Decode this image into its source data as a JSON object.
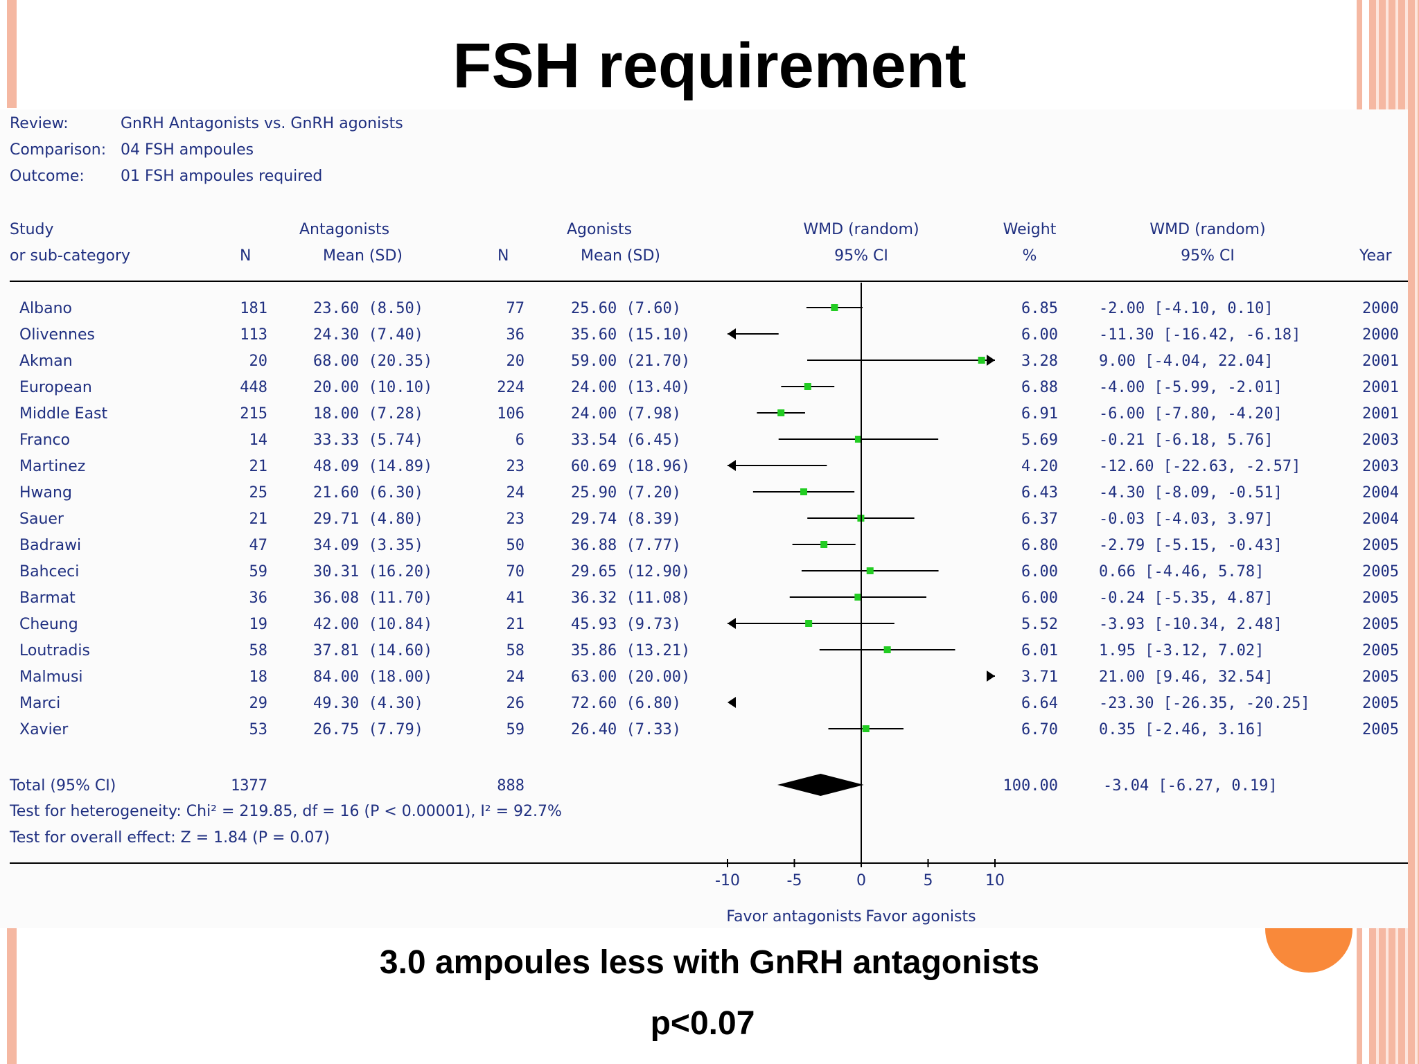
{
  "slide": {
    "title": "FSH requirement",
    "conclusion": "3.0 ampoules less with GnRH antagonists",
    "p_value": "p<0.07"
  },
  "colors": {
    "text": "#1f2f80",
    "marker": "#22cc22",
    "accent_orange": "#f9893a",
    "stripe": "#f5b8a2"
  },
  "chart_data": {
    "type": "forest",
    "meta": [
      {
        "label": "Review:",
        "value": "GnRH Antagonists vs. GnRH agonists"
      },
      {
        "label": "Comparison:",
        "value": "04 FSH ampoules"
      },
      {
        "label": "Outcome:",
        "value": "01 FSH ampoules required"
      }
    ],
    "headers": {
      "study": [
        "Study",
        "or sub-category"
      ],
      "antagonists": "Antagonists",
      "agonists": "Agonists",
      "n": "N",
      "mean_sd": "Mean (SD)",
      "wmd_plot": [
        "WMD (random)",
        "95% CI"
      ],
      "weight": [
        "Weight",
        "%"
      ],
      "wmd_text": [
        "WMD (random)",
        "95% CI"
      ],
      "year": "Year"
    },
    "studies": [
      {
        "study": "Albano",
        "n1": "181",
        "m1": "23.60 (8.50)",
        "n2": "77",
        "m2": "25.60 (7.60)",
        "wmd": -2.0,
        "lo": -4.1,
        "hi": 0.1,
        "weight": "6.85",
        "ci": "-2.00 [-4.10, 0.10]",
        "year": "2000"
      },
      {
        "study": "Olivennes",
        "n1": "113",
        "m1": "24.30 (7.40)",
        "n2": "36",
        "m2": "35.60 (15.10)",
        "wmd": -11.3,
        "lo": -16.42,
        "hi": -6.18,
        "weight": "6.00",
        "ci": "-11.30 [-16.42, -6.18]",
        "year": "2000"
      },
      {
        "study": "Akman",
        "n1": "20",
        "m1": "68.00 (20.35)",
        "n2": "20",
        "m2": "59.00 (21.70)",
        "wmd": 9.0,
        "lo": -4.04,
        "hi": 22.04,
        "weight": "3.28",
        "ci": "9.00 [-4.04, 22.04]",
        "year": "2001"
      },
      {
        "study": "European",
        "n1": "448",
        "m1": "20.00 (10.10)",
        "n2": "224",
        "m2": "24.00 (13.40)",
        "wmd": -4.0,
        "lo": -5.99,
        "hi": -2.01,
        "weight": "6.88",
        "ci": "-4.00 [-5.99, -2.01]",
        "year": "2001"
      },
      {
        "study": "Middle East",
        "n1": "215",
        "m1": "18.00 (7.28)",
        "n2": "106",
        "m2": "24.00 (7.98)",
        "wmd": -6.0,
        "lo": -7.8,
        "hi": -4.2,
        "weight": "6.91",
        "ci": "-6.00 [-7.80, -4.20]",
        "year": "2001"
      },
      {
        "study": "Franco",
        "n1": "14",
        "m1": "33.33 (5.74)",
        "n2": "6",
        "m2": "33.54 (6.45)",
        "wmd": -0.21,
        "lo": -6.18,
        "hi": 5.76,
        "weight": "5.69",
        "ci": "-0.21 [-6.18, 5.76]",
        "year": "2003"
      },
      {
        "study": "Martinez",
        "n1": "21",
        "m1": "48.09 (14.89)",
        "n2": "23",
        "m2": "60.69 (18.96)",
        "wmd": -12.6,
        "lo": -22.63,
        "hi": -2.57,
        "weight": "4.20",
        "ci": "-12.60 [-22.63, -2.57]",
        "year": "2003"
      },
      {
        "study": "Hwang",
        "n1": "25",
        "m1": "21.60 (6.30)",
        "n2": "24",
        "m2": "25.90 (7.20)",
        "wmd": -4.3,
        "lo": -8.09,
        "hi": -0.51,
        "weight": "6.43",
        "ci": "-4.30 [-8.09, -0.51]",
        "year": "2004"
      },
      {
        "study": "Sauer",
        "n1": "21",
        "m1": "29.71 (4.80)",
        "n2": "23",
        "m2": "29.74 (8.39)",
        "wmd": -0.03,
        "lo": -4.03,
        "hi": 3.97,
        "weight": "6.37",
        "ci": "-0.03 [-4.03, 3.97]",
        "year": "2004"
      },
      {
        "study": "Badrawi",
        "n1": "47",
        "m1": "34.09 (3.35)",
        "n2": "50",
        "m2": "36.88 (7.77)",
        "wmd": -2.79,
        "lo": -5.15,
        "hi": -0.43,
        "weight": "6.80",
        "ci": "-2.79 [-5.15, -0.43]",
        "year": "2005"
      },
      {
        "study": "Bahceci",
        "n1": "59",
        "m1": "30.31 (16.20)",
        "n2": "70",
        "m2": "29.65 (12.90)",
        "wmd": 0.66,
        "lo": -4.46,
        "hi": 5.78,
        "weight": "6.00",
        "ci": "0.66 [-4.46, 5.78]",
        "year": "2005"
      },
      {
        "study": "Barmat",
        "n1": "36",
        "m1": "36.08 (11.70)",
        "n2": "41",
        "m2": "36.32 (11.08)",
        "wmd": -0.24,
        "lo": -5.35,
        "hi": 4.87,
        "weight": "6.00",
        "ci": "-0.24 [-5.35, 4.87]",
        "year": "2005"
      },
      {
        "study": "Cheung",
        "n1": "19",
        "m1": "42.00 (10.84)",
        "n2": "21",
        "m2": "45.93 (9.73)",
        "wmd": -3.93,
        "lo": -10.34,
        "hi": 2.48,
        "weight": "5.52",
        "ci": "-3.93 [-10.34, 2.48]",
        "year": "2005"
      },
      {
        "study": "Loutradis",
        "n1": "58",
        "m1": "37.81 (14.60)",
        "n2": "58",
        "m2": "35.86 (13.21)",
        "wmd": 1.95,
        "lo": -3.12,
        "hi": 7.02,
        "weight": "6.01",
        "ci": "1.95 [-3.12, 7.02]",
        "year": "2005"
      },
      {
        "study": "Malmusi",
        "n1": "18",
        "m1": "84.00 (18.00)",
        "n2": "24",
        "m2": "63.00 (20.00)",
        "wmd": 21.0,
        "lo": 9.46,
        "hi": 32.54,
        "weight": "3.71",
        "ci": "21.00 [9.46, 32.54]",
        "year": "2005"
      },
      {
        "study": "Marci",
        "n1": "29",
        "m1": "49.30 (4.30)",
        "n2": "26",
        "m2": "72.60 (6.80)",
        "wmd": -23.3,
        "lo": -26.35,
        "hi": -20.25,
        "weight": "6.64",
        "ci": "-23.30 [-26.35, -20.25]",
        "year": "2005"
      },
      {
        "study": "Xavier",
        "n1": "53",
        "m1": "26.75 (7.79)",
        "n2": "59",
        "m2": "26.40 (7.33)",
        "wmd": 0.35,
        "lo": -2.46,
        "hi": 3.16,
        "weight": "6.70",
        "ci": "0.35 [-2.46, 3.16]",
        "year": "2005"
      }
    ],
    "total": {
      "label": "Total (95% CI)",
      "n1": "1377",
      "n2": "888",
      "wmd": -3.04,
      "lo": -6.27,
      "hi": 0.19,
      "weight": "100.00",
      "ci": "-3.04 [-6.27, 0.19]"
    },
    "heterogeneity": "Test for heterogeneity: Chi² = 219.85, df = 16 (P < 0.00001), I² = 92.7%",
    "overall_effect": "Test for overall effect: Z = 1.84 (P = 0.07)",
    "xlim": [
      -10,
      10
    ],
    "xticks": [
      -10,
      -5,
      0,
      5,
      10
    ],
    "favor_left": "Favor antagonists",
    "favor_right": "Favor agonists"
  }
}
